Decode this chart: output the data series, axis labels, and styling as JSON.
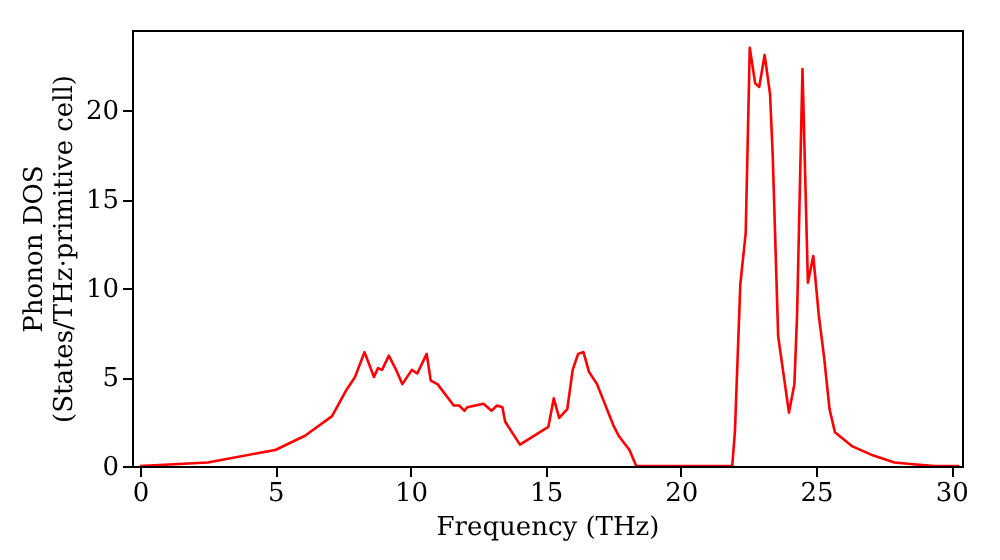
{
  "chart_data": {
    "type": "line",
    "xlabel": "Frequency (THz)",
    "ylabel": "Phonon DOS\n(States/THz·primitive cell)",
    "xlim": [
      -0.3,
      30.4
    ],
    "ylim": [
      0,
      24.5
    ],
    "xticks": [
      0,
      5,
      10,
      15,
      20,
      25,
      30
    ],
    "yticks": [
      0,
      5,
      10,
      15,
      20
    ],
    "grid": false,
    "legend": false,
    "series": [
      {
        "color": "#ff0000",
        "x": [
          0,
          2.5,
          5,
          6.1,
          7.1,
          7.6,
          7.95,
          8.3,
          8.65,
          8.8,
          8.95,
          9.2,
          9.5,
          9.7,
          10.05,
          10.25,
          10.6,
          10.75,
          11,
          11.6,
          11.8,
          12,
          12.1,
          12.7,
          13,
          13.2,
          13.4,
          13.5,
          14.05,
          15.1,
          15.3,
          15.5,
          15.8,
          16,
          16.2,
          16.4,
          16.6,
          16.9,
          17.5,
          17.7,
          18.1,
          18.35,
          21.9,
          22.0,
          22.2,
          22.4,
          22.55,
          22.75,
          22.9,
          23.1,
          23.3,
          23.4,
          23.6,
          24.0,
          24.2,
          24.3,
          24.5,
          24.7,
          24.9,
          25.1,
          25.3,
          25.5,
          25.7,
          26.35,
          27.1,
          27.9,
          28.6,
          29.4,
          30.3
        ],
        "values": [
          0,
          0.2,
          0.9,
          1.7,
          2.8,
          4.2,
          5,
          6.4,
          5,
          5.5,
          5.4,
          6.2,
          5.3,
          4.6,
          5.4,
          5.2,
          6.3,
          4.8,
          4.6,
          3.4,
          3.4,
          3.1,
          3.3,
          3.5,
          3.1,
          3.4,
          3.3,
          2.5,
          1.2,
          2.2,
          3.8,
          2.7,
          3.2,
          5.4,
          6.3,
          6.4,
          5.3,
          4.6,
          2.3,
          1.7,
          0.9,
          0,
          0,
          1.9,
          10.2,
          13.1,
          23.5,
          21.5,
          21.3,
          23.1,
          20.9,
          17.4,
          7.3,
          3.0,
          4.6,
          8.5,
          22.3,
          10.3,
          11.8,
          8.5,
          6.1,
          3.2,
          1.9,
          1.1,
          0.6,
          0.2,
          0.1,
          0,
          0
        ]
      }
    ]
  }
}
